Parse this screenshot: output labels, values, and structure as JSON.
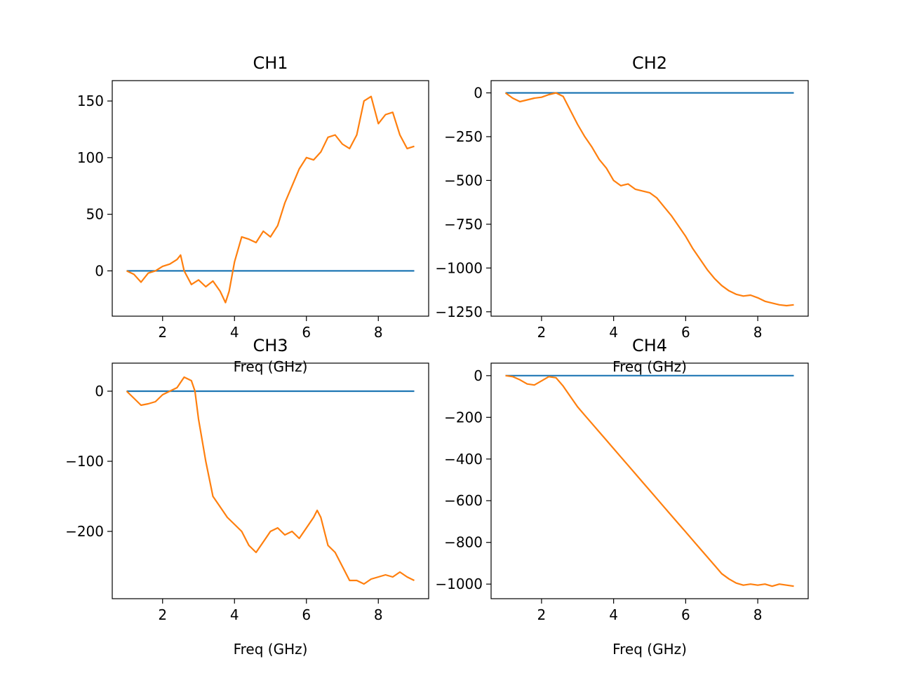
{
  "colors": {
    "reference": "#1f77b4",
    "measured": "#ff7f0e"
  },
  "chart_data": [
    {
      "type": "line",
      "title": "CH1",
      "xlabel": "Freq (GHz)",
      "ylabel": "",
      "xlim": [
        0.6,
        9.4
      ],
      "ylim": [
        -40,
        168
      ],
      "xticks": [
        2,
        4,
        6,
        8
      ],
      "yticks": [
        0,
        50,
        100,
        150
      ],
      "grid": false,
      "series": [
        {
          "role": "reference",
          "x": [
            1,
            9
          ],
          "values": [
            0,
            0
          ]
        },
        {
          "role": "measured",
          "x": [
            1.0,
            1.2,
            1.4,
            1.6,
            1.8,
            2.0,
            2.2,
            2.4,
            2.5,
            2.6,
            2.8,
            3.0,
            3.2,
            3.4,
            3.6,
            3.75,
            3.85,
            4.0,
            4.2,
            4.4,
            4.6,
            4.8,
            5.0,
            5.2,
            5.4,
            5.6,
            5.8,
            6.0,
            6.2,
            6.4,
            6.6,
            6.8,
            7.0,
            7.2,
            7.4,
            7.6,
            7.8,
            8.0,
            8.2,
            8.4,
            8.6,
            8.8,
            9.0
          ],
          "values": [
            0,
            -3,
            -10,
            -2,
            0,
            4,
            6,
            10,
            14,
            0,
            -12,
            -8,
            -14,
            -9,
            -18,
            -28,
            -18,
            8,
            30,
            28,
            25,
            35,
            30,
            40,
            60,
            75,
            90,
            100,
            98,
            105,
            118,
            120,
            112,
            108,
            120,
            150,
            154,
            130,
            138,
            140,
            120,
            108,
            110
          ]
        }
      ]
    },
    {
      "type": "line",
      "title": "CH2",
      "xlabel": "Freq (GHz)",
      "ylabel": "",
      "xlim": [
        0.6,
        9.4
      ],
      "ylim": [
        -1275,
        70
      ],
      "xticks": [
        2,
        4,
        6,
        8
      ],
      "yticks": [
        0,
        -250,
        -500,
        -750,
        -1000,
        -1250
      ],
      "grid": false,
      "series": [
        {
          "role": "reference",
          "x": [
            1,
            9
          ],
          "values": [
            0,
            0
          ]
        },
        {
          "role": "measured",
          "x": [
            1.0,
            1.2,
            1.4,
            1.6,
            1.8,
            2.0,
            2.2,
            2.4,
            2.6,
            2.8,
            3.0,
            3.2,
            3.4,
            3.6,
            3.8,
            4.0,
            4.2,
            4.4,
            4.6,
            4.8,
            5.0,
            5.2,
            5.4,
            5.6,
            5.8,
            6.0,
            6.2,
            6.4,
            6.6,
            6.8,
            7.0,
            7.2,
            7.4,
            7.6,
            7.8,
            8.0,
            8.2,
            8.4,
            8.6,
            8.8,
            9.0
          ],
          "values": [
            0,
            -30,
            -50,
            -40,
            -30,
            -25,
            -10,
            0,
            -20,
            -100,
            -180,
            -250,
            -310,
            -380,
            -430,
            -500,
            -530,
            -520,
            -550,
            -560,
            -570,
            -600,
            -650,
            -700,
            -760,
            -820,
            -890,
            -950,
            -1010,
            -1060,
            -1100,
            -1130,
            -1150,
            -1160,
            -1155,
            -1170,
            -1190,
            -1200,
            -1210,
            -1215,
            -1210
          ]
        }
      ]
    },
    {
      "type": "line",
      "title": "CH3",
      "xlabel": "Freq (GHz)",
      "ylabel": "",
      "xlim": [
        0.6,
        9.4
      ],
      "ylim": [
        -296,
        40
      ],
      "xticks": [
        2,
        4,
        6,
        8
      ],
      "yticks": [
        0,
        -100,
        -200
      ],
      "grid": false,
      "series": [
        {
          "role": "reference",
          "x": [
            1,
            9
          ],
          "values": [
            0,
            0
          ]
        },
        {
          "role": "measured",
          "x": [
            1.0,
            1.2,
            1.4,
            1.6,
            1.8,
            2.0,
            2.2,
            2.4,
            2.6,
            2.8,
            2.9,
            3.0,
            3.2,
            3.4,
            3.6,
            3.8,
            4.0,
            4.2,
            4.4,
            4.6,
            4.8,
            5.0,
            5.2,
            5.4,
            5.6,
            5.8,
            6.0,
            6.2,
            6.3,
            6.4,
            6.6,
            6.8,
            7.0,
            7.2,
            7.4,
            7.6,
            7.8,
            8.0,
            8.2,
            8.4,
            8.6,
            8.8,
            9.0
          ],
          "values": [
            0,
            -10,
            -20,
            -18,
            -15,
            -5,
            0,
            5,
            20,
            15,
            0,
            -40,
            -100,
            -150,
            -165,
            -180,
            -190,
            -200,
            -220,
            -230,
            -215,
            -200,
            -195,
            -205,
            -200,
            -210,
            -195,
            -180,
            -170,
            -180,
            -220,
            -230,
            -250,
            -270,
            -270,
            -275,
            -268,
            -265,
            -262,
            -265,
            -258,
            -265,
            -270
          ]
        }
      ]
    },
    {
      "type": "line",
      "title": "CH4",
      "xlabel": "Freq (GHz)",
      "ylabel": "",
      "xlim": [
        0.6,
        9.4
      ],
      "ylim": [
        -1070,
        60
      ],
      "xticks": [
        2,
        4,
        6,
        8
      ],
      "yticks": [
        0,
        -200,
        -400,
        -600,
        -800,
        -1000
      ],
      "grid": false,
      "series": [
        {
          "role": "reference",
          "x": [
            1,
            9
          ],
          "values": [
            0,
            0
          ]
        },
        {
          "role": "measured",
          "x": [
            1.0,
            1.2,
            1.4,
            1.6,
            1.8,
            2.0,
            2.2,
            2.4,
            2.6,
            2.8,
            3.0,
            3.2,
            3.4,
            3.6,
            3.8,
            4.0,
            4.2,
            4.4,
            4.6,
            4.8,
            5.0,
            5.2,
            5.4,
            5.6,
            5.8,
            6.0,
            6.2,
            6.4,
            6.6,
            6.8,
            7.0,
            7.2,
            7.4,
            7.6,
            7.8,
            8.0,
            8.2,
            8.4,
            8.6,
            8.8,
            9.0
          ],
          "values": [
            0,
            -5,
            -20,
            -40,
            -45,
            -25,
            -5,
            -10,
            -50,
            -100,
            -150,
            -190,
            -230,
            -270,
            -310,
            -350,
            -390,
            -430,
            -470,
            -510,
            -550,
            -590,
            -630,
            -670,
            -710,
            -750,
            -790,
            -830,
            -870,
            -910,
            -950,
            -975,
            -995,
            -1005,
            -1000,
            -1005,
            -1000,
            -1010,
            -1000,
            -1005,
            -1010
          ]
        }
      ]
    }
  ]
}
